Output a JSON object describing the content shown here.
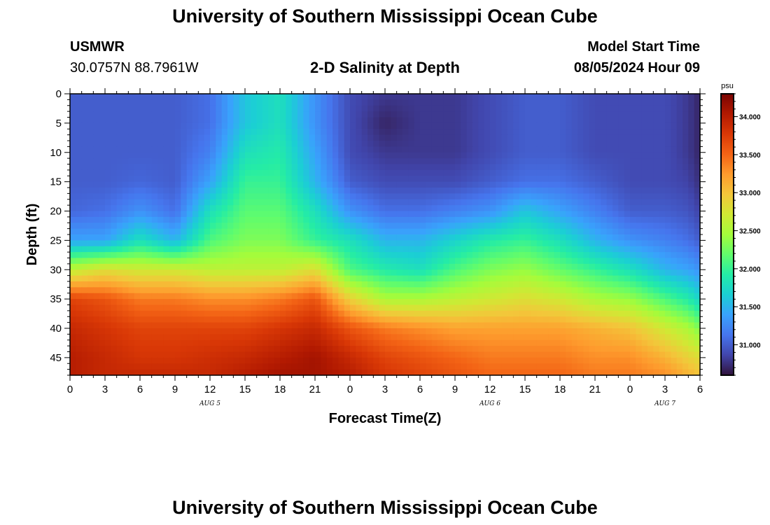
{
  "header": {
    "title": "University of Southern Mississippi Ocean Cube",
    "station": "USMWR",
    "coords": "30.0757N  88.7961W",
    "plot_title": "2-D Salinity at Depth",
    "model_label": "Model Start Time",
    "model_time": "08/05/2024 Hour 09"
  },
  "footer": {
    "title": "University of Southern Mississippi Ocean Cube"
  },
  "chart_data": {
    "type": "heatmap",
    "title": "2-D Salinity at Depth",
    "xlabel": "Forecast Time(Z)",
    "ylabel": "Depth (ft)",
    "x_unit": "hours",
    "x_range": [
      0,
      54
    ],
    "x_ticks": [
      0,
      3,
      6,
      9,
      12,
      15,
      18,
      21,
      24,
      27,
      30,
      33,
      36,
      39,
      42,
      45,
      48,
      51,
      54
    ],
    "x_tick_labels": [
      "0",
      "3",
      "6",
      "9",
      "12",
      "15",
      "18",
      "21",
      "0",
      "3",
      "6",
      "9",
      "12",
      "15",
      "18",
      "21",
      "0",
      "3",
      "6"
    ],
    "day_labels": [
      {
        "text": "AUG 5",
        "x": 12
      },
      {
        "text": "AUG 6",
        "x": 36
      },
      {
        "text": "AUG 7",
        "x": 51
      }
    ],
    "y_range": [
      0,
      48
    ],
    "y_reversed": true,
    "y_ticks": [
      0,
      5,
      10,
      15,
      20,
      25,
      30,
      35,
      40,
      45
    ],
    "colorbar": {
      "unit": "psu",
      "range": [
        30.6,
        34.3
      ],
      "ticks": [
        31.0,
        31.5,
        32.0,
        32.5,
        33.0,
        33.5,
        34.0
      ],
      "tick_labels": [
        "31.000",
        "31.500",
        "32.000",
        "32.500",
        "33.000",
        "33.500",
        "34.000"
      ],
      "colormap": [
        "#30123b",
        "#4145ab",
        "#4675ed",
        "#39a2fc",
        "#1bcfd4",
        "#24eca6",
        "#61fc6c",
        "#a4fc3b",
        "#d1e834",
        "#f3c63a",
        "#fe9b2d",
        "#f36315",
        "#d93806",
        "#b11901",
        "#7a0402"
      ]
    },
    "profiles_depth": [
      0,
      5,
      10,
      15,
      20,
      25,
      30,
      35,
      40,
      45,
      48
    ],
    "profiles": [
      {
        "x": 0,
        "values": [
          31.0,
          31.0,
          31.0,
          31.0,
          31.05,
          31.4,
          32.6,
          33.7,
          33.9,
          34.0,
          34.0
        ]
      },
      {
        "x": 3,
        "values": [
          31.0,
          31.0,
          31.0,
          31.0,
          31.1,
          31.4,
          32.8,
          33.6,
          33.8,
          33.9,
          33.9
        ]
      },
      {
        "x": 6,
        "values": [
          31.0,
          31.0,
          31.0,
          31.05,
          31.3,
          31.8,
          32.7,
          33.4,
          33.7,
          33.8,
          33.9
        ]
      },
      {
        "x": 9,
        "values": [
          31.0,
          31.0,
          31.0,
          31.0,
          31.1,
          31.5,
          32.7,
          33.4,
          33.7,
          33.8,
          33.9
        ]
      },
      {
        "x": 12,
        "values": [
          31.1,
          31.1,
          31.2,
          31.4,
          31.8,
          32.1,
          32.6,
          33.3,
          33.7,
          33.85,
          33.9
        ]
      },
      {
        "x": 15,
        "values": [
          31.6,
          31.6,
          31.8,
          32.0,
          32.15,
          32.3,
          32.6,
          33.3,
          33.7,
          33.9,
          34.0
        ]
      },
      {
        "x": 18,
        "values": [
          31.8,
          31.8,
          31.9,
          32.0,
          32.15,
          32.3,
          32.6,
          33.4,
          33.8,
          34.0,
          34.1
        ]
      },
      {
        "x": 21,
        "values": [
          31.3,
          31.3,
          31.4,
          31.5,
          31.8,
          32.0,
          32.8,
          33.6,
          33.9,
          34.1,
          34.1
        ]
      },
      {
        "x": 24,
        "values": [
          30.9,
          30.9,
          30.9,
          31.0,
          31.3,
          31.8,
          32.1,
          32.9,
          33.6,
          33.9,
          34.0
        ]
      },
      {
        "x": 27,
        "values": [
          30.8,
          30.7,
          30.8,
          30.9,
          31.1,
          31.5,
          31.9,
          32.5,
          33.4,
          33.7,
          33.8
        ]
      },
      {
        "x": 30,
        "values": [
          30.8,
          30.8,
          30.8,
          30.9,
          31.1,
          31.5,
          31.8,
          32.5,
          33.3,
          33.6,
          33.7
        ]
      },
      {
        "x": 33,
        "values": [
          30.8,
          30.8,
          30.8,
          30.9,
          31.2,
          31.7,
          32.1,
          32.6,
          33.2,
          33.5,
          33.6
        ]
      },
      {
        "x": 36,
        "values": [
          30.9,
          30.9,
          30.9,
          31.0,
          31.3,
          31.9,
          32.3,
          32.7,
          33.2,
          33.4,
          33.5
        ]
      },
      {
        "x": 39,
        "values": [
          31.0,
          31.0,
          31.0,
          31.1,
          31.6,
          32.0,
          32.4,
          32.8,
          33.2,
          33.4,
          33.5
        ]
      },
      {
        "x": 42,
        "values": [
          31.0,
          31.0,
          31.0,
          31.1,
          31.4,
          31.8,
          32.2,
          32.7,
          33.2,
          33.4,
          33.5
        ]
      },
      {
        "x": 45,
        "values": [
          30.9,
          30.9,
          30.9,
          31.0,
          31.2,
          31.5,
          32.0,
          32.5,
          33.1,
          33.3,
          33.4
        ]
      },
      {
        "x": 48,
        "values": [
          30.9,
          30.9,
          30.9,
          30.9,
          31.0,
          31.3,
          31.8,
          32.4,
          33.0,
          33.3,
          33.4
        ]
      },
      {
        "x": 51,
        "values": [
          30.9,
          30.9,
          30.9,
          30.9,
          31.0,
          31.2,
          31.5,
          32.1,
          32.7,
          33.1,
          33.3
        ]
      },
      {
        "x": 53,
        "values": [
          30.8,
          30.8,
          30.8,
          30.85,
          30.95,
          31.1,
          31.4,
          31.9,
          32.5,
          32.9,
          33.1
        ]
      },
      {
        "x": 54,
        "values": [
          30.7,
          30.7,
          30.7,
          30.75,
          30.85,
          31.0,
          31.3,
          31.7,
          32.3,
          32.8,
          33.0
        ]
      }
    ]
  }
}
